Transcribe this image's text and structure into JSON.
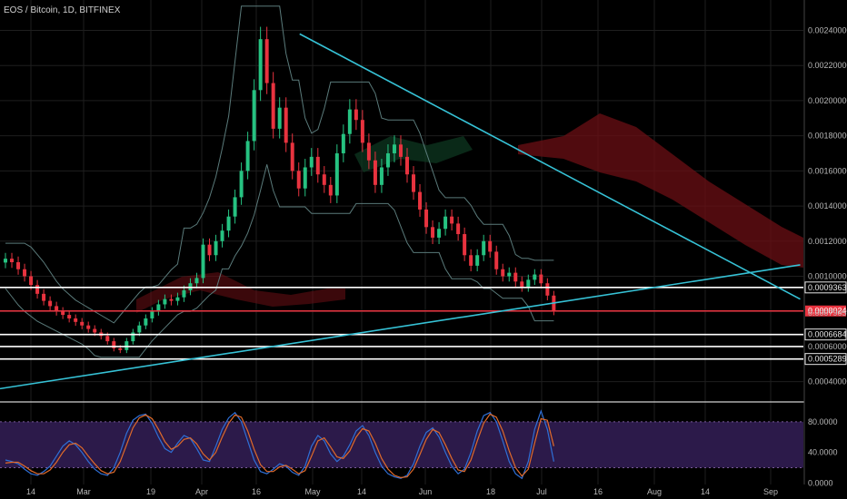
{
  "header": {
    "title": "EOS / Bitcoin, 1D, BITFINEX"
  },
  "colors": {
    "background": "#000000",
    "grid": "#1e1e1e",
    "candle_up": "#26c281",
    "candle_down": "#e8333f",
    "trendline": "#36c2d6",
    "horizontal_level": "#ffffff",
    "current_price_tag": "#e8333f",
    "cloud_bear": "#6b0f14",
    "cloud_bull": "#0e3a22",
    "bollinger": "#5a7a7a",
    "stoch_k": "#2f6fd6",
    "stoch_d": "#e06a2a",
    "stoch_band": "#2c1a4a"
  },
  "chart_data": [
    {
      "type": "candlestick",
      "title": "EOS / Bitcoin, 1D, BITFINEX",
      "x_tick_labels": [
        "14",
        "Mar",
        "19",
        "Apr",
        "16",
        "May",
        "14",
        "Jun",
        "18",
        "Jul",
        "16",
        "Aug",
        "14",
        "Sep"
      ],
      "y_tick_labels": [
        "0.00240000",
        "0.00220000",
        "0.00200000",
        "0.00180000",
        "0.00160000",
        "0.00140000",
        "0.00120000",
        "0.00100000",
        "0.00080000",
        "0.00060000",
        "0.00040000"
      ],
      "ylim": [
        0.0003,
        0.00248
      ],
      "price_tags": [
        {
          "value": "0.00093635",
          "y": 0.00093635,
          "style": "white"
        },
        {
          "value": "0.00080242",
          "y": 0.00080242,
          "style": "current"
        },
        {
          "value": "0.00079058",
          "y": 0.00079058,
          "style": "plain"
        },
        {
          "value": "0.00066847",
          "y": 0.00066847,
          "style": "white"
        },
        {
          "value": "0.00052898",
          "y": 0.00052898,
          "style": "white"
        }
      ],
      "horizontal_levels": [
        0.00093635,
        0.00080242,
        0.00066847,
        0.0006,
        0.00052898
      ],
      "trendlines": [
        {
          "from": [
            0,
            0.00036
          ],
          "to": [
            251,
            0.001065
          ]
        },
        {
          "from": [
            94,
            0.00238
          ],
          "to": [
            251,
            0.00087
          ]
        }
      ],
      "closes": [
        0.0011,
        0.00108,
        0.00104,
        0.001,
        0.00095,
        0.0009,
        0.00086,
        0.00083,
        0.0008,
        0.00078,
        0.00076,
        0.00074,
        0.00072,
        0.0007,
        0.00068,
        0.00066,
        0.00063,
        0.00059,
        0.00058,
        0.00063,
        0.00068,
        0.00072,
        0.00076,
        0.0008,
        0.00084,
        0.00087,
        0.00086,
        0.00088,
        0.00092,
        0.00096,
        0.00099,
        0.00118,
        0.00112,
        0.0012,
        0.00126,
        0.00134,
        0.00145,
        0.0016,
        0.00177,
        0.00206,
        0.00235,
        0.0021,
        0.00184,
        0.00196,
        0.00176,
        0.0016,
        0.0015,
        0.00162,
        0.00168,
        0.00158,
        0.00152,
        0.00146,
        0.0017,
        0.00181,
        0.00195,
        0.00189,
        0.00176,
        0.00166,
        0.00152,
        0.00162,
        0.0017,
        0.00175,
        0.00168,
        0.00158,
        0.00148,
        0.00138,
        0.00128,
        0.00122,
        0.00127,
        0.00134,
        0.0013,
        0.00124,
        0.00112,
        0.00106,
        0.00112,
        0.0012,
        0.00114,
        0.00104,
        0.001,
        0.00102,
        0.00097,
        0.00094,
        0.00098,
        0.00101,
        0.00096,
        0.00089,
        0.00080242
      ]
    },
    {
      "type": "line",
      "title": "Stochastic RSI",
      "y_tick_labels": [
        "80.0000",
        "40.0000",
        "0.0000"
      ],
      "ylim": [
        -2,
        100
      ],
      "bands": [
        20,
        80
      ],
      "series": [
        {
          "values": [
            30,
            28,
            25,
            18,
            12,
            10,
            15,
            22,
            35,
            48,
            55,
            50,
            40,
            28,
            18,
            12,
            10,
            20,
            40,
            65,
            82,
            88,
            90,
            78,
            60,
            45,
            40,
            52,
            62,
            58,
            45,
            30,
            28,
            48,
            70,
            85,
            92,
            80,
            55,
            30,
            15,
            12,
            18,
            25,
            22,
            14,
            10,
            22,
            48,
            62,
            55,
            38,
            28,
            35,
            50,
            68,
            75,
            62,
            40,
            22,
            12,
            8,
            6,
            10,
            25,
            48,
            66,
            72,
            60,
            40,
            22,
            12,
            18,
            40,
            68,
            88,
            92,
            80,
            55,
            28,
            12,
            6,
            28,
            70,
            94,
            70,
            28
          ]
        },
        {
          "values": [
            26,
            27,
            27,
            22,
            16,
            12,
            12,
            17,
            27,
            40,
            50,
            52,
            46,
            35,
            25,
            16,
            12,
            14,
            28,
            50,
            72,
            85,
            89,
            84,
            70,
            54,
            44,
            48,
            57,
            59,
            51,
            38,
            30,
            40,
            60,
            78,
            89,
            86,
            68,
            44,
            24,
            15,
            15,
            21,
            23,
            18,
            12,
            16,
            35,
            55,
            59,
            47,
            34,
            32,
            42,
            60,
            71,
            68,
            52,
            32,
            18,
            10,
            7,
            8,
            18,
            37,
            57,
            70,
            66,
            50,
            32,
            17,
            15,
            30,
            55,
            78,
            90,
            86,
            68,
            42,
            20,
            9,
            18,
            52,
            84,
            82,
            48
          ]
        }
      ]
    }
  ]
}
